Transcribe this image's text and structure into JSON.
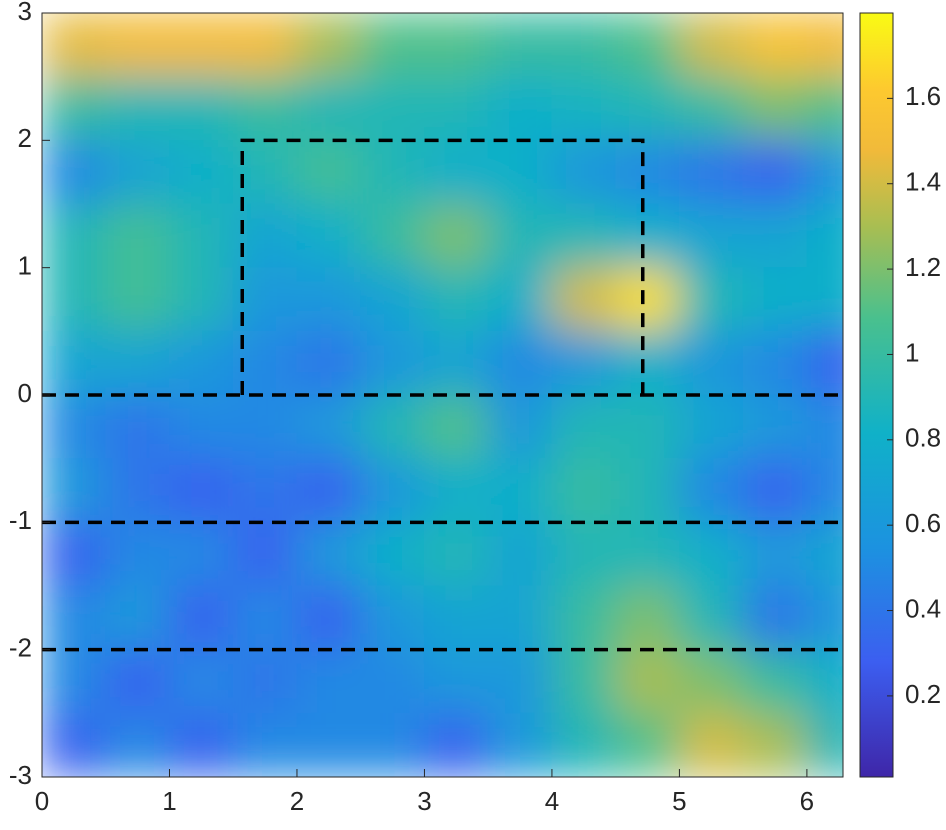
{
  "chart_data": {
    "type": "heatmap",
    "x": [
      0.25,
      0.75,
      1.25,
      1.75,
      2.25,
      2.75,
      3.25,
      3.75,
      4.25,
      4.75,
      5.25,
      5.75,
      6.25
    ],
    "y": [
      2.75,
      2.25,
      1.75,
      1.25,
      0.75,
      0.25,
      -0.25,
      -0.75,
      -1.25,
      -1.75,
      -2.25,
      -2.75
    ],
    "z": [
      [
        1.45,
        1.5,
        1.5,
        1.5,
        1.3,
        1.1,
        1.1,
        1.0,
        1.0,
        1.1,
        1.4,
        1.55,
        1.5
      ],
      [
        1.0,
        0.9,
        0.9,
        1.0,
        0.9,
        0.9,
        0.9,
        0.8,
        0.85,
        0.9,
        1.0,
        1.2,
        1.1
      ],
      [
        0.5,
        0.7,
        0.8,
        0.9,
        1.05,
        0.9,
        0.8,
        0.8,
        0.6,
        0.5,
        0.4,
        0.3,
        0.6
      ],
      [
        0.9,
        1.05,
        0.9,
        0.7,
        0.8,
        1.0,
        1.2,
        0.9,
        0.9,
        0.8,
        0.7,
        0.7,
        0.8
      ],
      [
        0.9,
        1.05,
        0.9,
        0.6,
        0.6,
        0.7,
        0.9,
        0.8,
        1.4,
        1.7,
        0.9,
        0.8,
        0.8
      ],
      [
        0.7,
        0.7,
        0.6,
        0.5,
        0.4,
        0.6,
        0.7,
        0.5,
        0.6,
        0.8,
        0.6,
        0.5,
        0.3
      ],
      [
        0.5,
        0.4,
        0.5,
        0.5,
        0.6,
        0.9,
        1.1,
        0.6,
        0.9,
        0.9,
        0.7,
        0.6,
        0.5
      ],
      [
        0.6,
        0.4,
        0.3,
        0.4,
        0.3,
        0.6,
        0.8,
        0.8,
        1.0,
        0.9,
        0.5,
        0.3,
        0.5
      ],
      [
        0.3,
        0.5,
        0.5,
        0.3,
        0.6,
        0.8,
        0.9,
        0.7,
        0.9,
        0.9,
        0.8,
        0.6,
        0.7
      ],
      [
        0.5,
        0.6,
        0.3,
        0.5,
        0.3,
        0.6,
        0.7,
        0.7,
        1.0,
        1.2,
        0.9,
        0.4,
        0.6
      ],
      [
        0.5,
        0.3,
        0.5,
        0.4,
        0.5,
        0.5,
        0.6,
        0.6,
        1.0,
        1.3,
        1.2,
        1.0,
        0.8
      ],
      [
        0.3,
        0.5,
        0.3,
        0.5,
        0.5,
        0.5,
        0.3,
        0.6,
        0.9,
        1.1,
        1.4,
        1.3,
        0.9
      ]
    ],
    "xlim": [
      0,
      6.2832
    ],
    "ylim": [
      -3,
      3
    ],
    "xticks": [
      0,
      1,
      2,
      3,
      4,
      5,
      6
    ],
    "yticks": [
      -3,
      -2,
      -1,
      0,
      1,
      2,
      3
    ],
    "clim": [
      0.01,
      1.8
    ],
    "colorbar_ticks": [
      0.2,
      0.4,
      0.6,
      0.8,
      1,
      1.2,
      1.4,
      1.6
    ],
    "dashed_lines": [
      {
        "x": [
          1.5708,
          1.5708,
          4.7124,
          4.7124
        ],
        "y": [
          0,
          2,
          2,
          0
        ]
      },
      {
        "x": [
          0,
          6.2832
        ],
        "y": [
          0,
          0
        ]
      },
      {
        "x": [
          0,
          6.2832
        ],
        "y": [
          -1,
          -1
        ]
      },
      {
        "x": [
          0,
          6.2832
        ],
        "y": [
          -2,
          -2
        ]
      }
    ]
  }
}
